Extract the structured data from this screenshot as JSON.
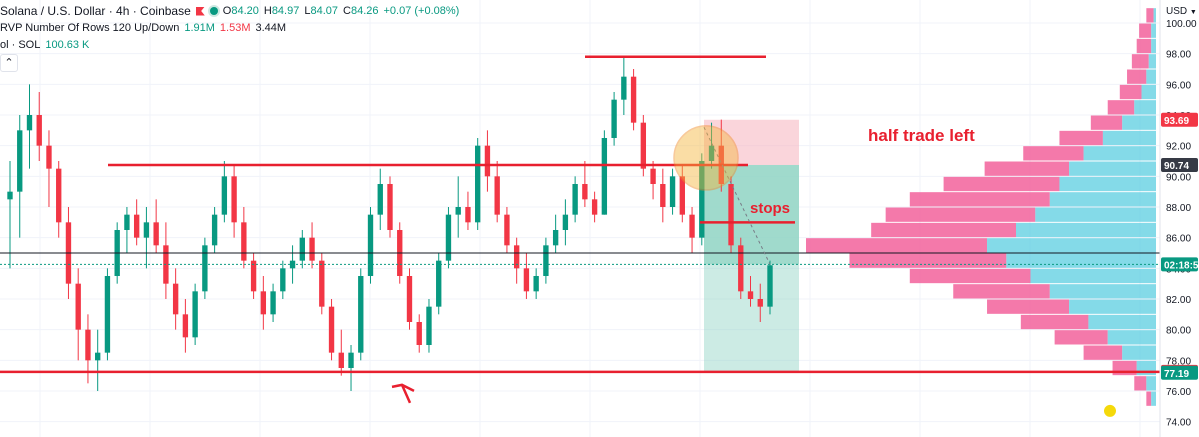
{
  "header": {
    "symbol": "Solana / U.S. Dollar · 4h · Coinbase",
    "ohlc": {
      "o_label": "O",
      "o_value": "84.20",
      "h_label": "H",
      "h_value": "84.97",
      "l_label": "L",
      "l_value": "84.07",
      "c_label": "C",
      "c_value": "84.26",
      "change": "+0.07 (+0.08%)"
    },
    "colors": {
      "flag": "#f23645",
      "market_open": "#089981"
    }
  },
  "indicators": {
    "vrvp": {
      "label": "RVP Number Of Rows 120 Up/Down",
      "up": "1.91M",
      "down": "1.53M",
      "total": "3.44M"
    },
    "volume": {
      "label": "ol · SOL",
      "value": "100.63 K"
    }
  },
  "price_axis": {
    "currency": "USD",
    "currency_icon": "dropdown-caret",
    "ticks": [
      "100.00",
      "98.00",
      "96.00",
      "94.00",
      "92.00",
      "90.00",
      "88.00",
      "86.00",
      "84.00",
      "82.00",
      "80.00",
      "78.00",
      "76.00",
      "74.00"
    ],
    "tags": [
      {
        "name": "position-target-tag",
        "text": "93.69",
        "price": 93.69,
        "bg": "#f23645",
        "fg": "#ffffff"
      },
      {
        "name": "position-entry-tag",
        "text": "90.74",
        "price": 90.74,
        "bg": "#363a45",
        "fg": "#ffffff"
      },
      {
        "name": "countdown-tag",
        "text": "02:18:56",
        "price": 84.26,
        "bg": "#089981",
        "fg": "#ffffff"
      },
      {
        "name": "support-line-tag",
        "text": "77.25",
        "price": 77.25,
        "bg": "#f23645",
        "fg": "#ffffff"
      },
      {
        "name": "position-stop-tag",
        "text": "77.19",
        "price": 77.19,
        "bg": "#089981",
        "fg": "#ffffff"
      }
    ]
  },
  "annotations": {
    "half_trade_left": "half trade left",
    "stops": "stops",
    "colors": {
      "drawing_red": "#e8202f",
      "profit_zone": "#8fd3c3",
      "loss_zone": "#f7b9c3",
      "highlight_circle": "#f5b63a",
      "dot": "#f5d90a"
    }
  },
  "chart_data": {
    "type": "candlestick",
    "title": "Solana / U.S. Dollar · 4h · Coinbase",
    "xlabel": "",
    "ylabel": "USD",
    "ylim": [
      73,
      101.5
    ],
    "grid": true,
    "colors": {
      "up": "#089981",
      "down": "#f23645",
      "vp_up": "#5bcde0",
      "vp_down": "#f2629b"
    },
    "candles": [
      [
        88.5,
        91,
        84,
        89
      ],
      [
        89,
        94,
        86,
        93
      ],
      [
        93,
        96,
        90.5,
        94
      ],
      [
        94,
        95.5,
        91,
        92
      ],
      [
        92,
        93,
        88,
        90.5
      ],
      [
        90.5,
        91,
        86,
        87
      ],
      [
        87,
        88,
        82,
        83
      ],
      [
        83,
        84,
        78,
        80
      ],
      [
        80,
        81,
        76.5,
        78
      ],
      [
        78,
        80,
        76,
        78.5
      ],
      [
        78.5,
        84,
        78,
        83.5
      ],
      [
        83.5,
        87,
        83,
        86.5
      ],
      [
        86.5,
        88,
        85,
        87.5
      ],
      [
        87.5,
        88.5,
        85.5,
        86
      ],
      [
        86,
        88,
        84,
        87
      ],
      [
        87,
        88.5,
        85,
        85.5
      ],
      [
        85.5,
        87,
        82,
        83
      ],
      [
        83,
        84,
        80,
        81
      ],
      [
        81,
        82,
        78.5,
        79.5
      ],
      [
        79.5,
        83,
        79,
        82.5
      ],
      [
        82.5,
        86,
        82,
        85.5
      ],
      [
        85.5,
        88,
        85,
        87.5
      ],
      [
        87.5,
        91,
        87,
        90
      ],
      [
        90,
        90.8,
        86,
        87
      ],
      [
        87,
        88,
        84,
        84.5
      ],
      [
        84.5,
        85,
        82,
        82.5
      ],
      [
        82.5,
        83.5,
        80,
        81
      ],
      [
        81,
        83,
        80.5,
        82.5
      ],
      [
        82.5,
        84.5,
        82,
        84
      ],
      [
        84,
        85.5,
        83,
        84.5
      ],
      [
        84.5,
        86.5,
        84,
        86
      ],
      [
        86,
        87,
        84,
        84.5
      ],
      [
        84.5,
        85,
        81,
        81.5
      ],
      [
        81.5,
        82,
        78,
        78.5
      ],
      [
        78.5,
        80,
        77,
        77.5
      ],
      [
        77.5,
        79,
        76,
        78.5
      ],
      [
        78.5,
        84,
        78,
        83.5
      ],
      [
        83.5,
        88,
        83,
        87.5
      ],
      [
        87.5,
        90.5,
        86.5,
        89.5
      ],
      [
        89.5,
        90,
        86,
        86.5
      ],
      [
        86.5,
        87,
        83,
        83.5
      ],
      [
        83.5,
        84,
        80,
        80.5
      ],
      [
        80.5,
        81,
        78.5,
        79
      ],
      [
        79,
        82,
        78.5,
        81.5
      ],
      [
        81.5,
        85,
        81,
        84.5
      ],
      [
        84.5,
        88,
        84,
        87.5
      ],
      [
        87.5,
        90,
        86,
        88
      ],
      [
        88,
        89,
        86.5,
        87
      ],
      [
        87,
        92.5,
        86.5,
        92
      ],
      [
        92,
        93,
        89,
        90
      ],
      [
        90,
        91,
        87,
        87.5
      ],
      [
        87.5,
        88,
        85,
        85.5
      ],
      [
        85.5,
        86,
        83,
        84
      ],
      [
        84,
        85,
        82,
        82.5
      ],
      [
        82.5,
        84,
        82,
        83.5
      ],
      [
        83.5,
        86,
        83,
        85.5
      ],
      [
        85.5,
        87.5,
        85,
        86.5
      ],
      [
        86.5,
        88.5,
        85.5,
        87.5
      ],
      [
        87.5,
        90,
        87,
        89.5
      ],
      [
        89.5,
        91,
        88,
        88.5
      ],
      [
        88.5,
        89,
        87,
        87.5
      ],
      [
        87.5,
        93,
        87.5,
        92.5
      ],
      [
        92.5,
        95.5,
        92,
        95
      ],
      [
        95,
        97.8,
        94,
        96.5
      ],
      [
        96.5,
        97,
        93,
        93.5
      ],
      [
        93.5,
        94,
        90,
        90.5
      ],
      [
        90.5,
        91,
        88.5,
        89.5
      ],
      [
        89.5,
        90.5,
        87,
        88
      ],
      [
        88,
        90.5,
        87.5,
        90
      ],
      [
        90,
        90.8,
        87,
        87.5
      ],
      [
        87.5,
        88,
        85,
        86
      ],
      [
        86,
        91.5,
        85.5,
        91
      ],
      [
        91,
        93.5,
        90.5,
        92
      ],
      [
        92,
        93.7,
        89,
        89.5
      ],
      [
        89.5,
        90,
        85,
        85.5
      ],
      [
        85.5,
        86,
        82,
        82.5
      ],
      [
        82.5,
        83.5,
        81.5,
        82
      ],
      [
        82,
        83,
        80.5,
        81.5
      ],
      [
        81.5,
        84.5,
        81,
        84.2
      ]
    ],
    "volume_profile": [
      {
        "price": 100.5,
        "up": 1,
        "down": 3
      },
      {
        "price": 99.5,
        "up": 2,
        "down": 5
      },
      {
        "price": 98.5,
        "up": 2,
        "down": 6
      },
      {
        "price": 97.5,
        "up": 3,
        "down": 7
      },
      {
        "price": 96.5,
        "up": 4,
        "down": 8
      },
      {
        "price": 95.5,
        "up": 6,
        "down": 9
      },
      {
        "price": 94.5,
        "up": 9,
        "down": 11
      },
      {
        "price": 93.5,
        "up": 14,
        "down": 13
      },
      {
        "price": 92.5,
        "up": 22,
        "down": 18
      },
      {
        "price": 91.5,
        "up": 30,
        "down": 25
      },
      {
        "price": 90.5,
        "up": 36,
        "down": 35
      },
      {
        "price": 89.5,
        "up": 40,
        "down": 48
      },
      {
        "price": 88.5,
        "up": 44,
        "down": 58
      },
      {
        "price": 87.5,
        "up": 50,
        "down": 62
      },
      {
        "price": 86.5,
        "up": 58,
        "down": 60
      },
      {
        "price": 85.5,
        "up": 70,
        "down": 75
      },
      {
        "price": 84.5,
        "up": 62,
        "down": 65
      },
      {
        "price": 83.5,
        "up": 52,
        "down": 50
      },
      {
        "price": 82.5,
        "up": 44,
        "down": 40
      },
      {
        "price": 81.5,
        "up": 36,
        "down": 34
      },
      {
        "price": 80.5,
        "up": 28,
        "down": 28
      },
      {
        "price": 79.5,
        "up": 20,
        "down": 22
      },
      {
        "price": 78.5,
        "up": 14,
        "down": 16
      },
      {
        "price": 77.5,
        "up": 8,
        "down": 10
      },
      {
        "price": 76.5,
        "up": 4,
        "down": 5
      },
      {
        "price": 75.5,
        "up": 2,
        "down": 2
      }
    ],
    "levels": {
      "resistance": 90.74,
      "support": 77.25,
      "top": 97.8,
      "current": 84.26,
      "horizontal_black": 85.0,
      "stops": 87.0
    },
    "position": {
      "entry": 90.74,
      "target_high": 93.69,
      "stop": 77.19
    }
  }
}
